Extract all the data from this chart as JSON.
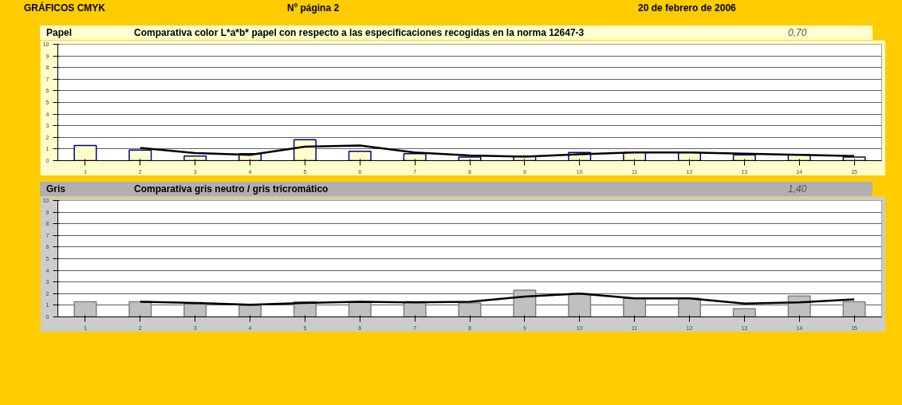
{
  "chart_data": [
    {
      "type": "bar",
      "title": "Comparativa color L*a*b* papel con respecto a las especificaciones recogidas en la  norma  12647-3",
      "annotations": [
        "GRÁFICOS  CMYK",
        "Nº página 2",
        "20 de febrero de 2006",
        "Papel",
        "0,70"
      ],
      "categories": [
        "1",
        "2",
        "3",
        "4",
        "5",
        "6",
        "7",
        "8",
        "9",
        "10",
        "11",
        "12",
        "13",
        "14",
        "15"
      ],
      "series": [
        {
          "color": "#ffffcc",
          "values": [
            1.3,
            0.9,
            0.4,
            0.6,
            1.8,
            0.8,
            0.6,
            0.3,
            0.4,
            0.7,
            0.7,
            0.7,
            0.5,
            0.5,
            0.3
          ]
        },
        {
          "type": "line",
          "color": "#000000",
          "values": [
            null,
            1.1,
            0.65,
            0.5,
            1.2,
            1.3,
            0.7,
            0.45,
            0.35,
            0.55,
            0.7,
            0.7,
            0.6,
            0.5,
            0.4
          ]
        }
      ],
      "ylim": [
        0,
        10
      ],
      "yticks": [
        0,
        1,
        2,
        3,
        4,
        5,
        6,
        7,
        8,
        9,
        10
      ],
      "grid": "y"
    },
    {
      "type": "bar",
      "title": "Comparativa gris neutro / gris tricromático",
      "annotations": [
        "Gris",
        "1,40"
      ],
      "categories": [
        "1",
        "2",
        "3",
        "4",
        "5",
        "6",
        "7",
        "8",
        "9",
        "10",
        "11",
        "12",
        "13",
        "14",
        "15"
      ],
      "series": [
        {
          "color": "#c0c0c0",
          "values": [
            1.3,
            1.3,
            1.1,
            1.0,
            1.3,
            1.3,
            1.3,
            1.2,
            2.3,
            2.0,
            1.6,
            1.6,
            0.7,
            1.8,
            1.3
          ]
        },
        {
          "type": "line",
          "color": "#000000",
          "values": [
            null,
            1.3,
            1.2,
            1.05,
            1.2,
            1.3,
            1.25,
            1.3,
            1.75,
            2.0,
            1.6,
            1.6,
            1.15,
            1.25,
            1.5
          ]
        }
      ],
      "ylim": [
        0,
        10
      ],
      "yticks": [
        0,
        1,
        2,
        3,
        4,
        5,
        6,
        7,
        8,
        9,
        10
      ],
      "grid": "y"
    }
  ]
}
